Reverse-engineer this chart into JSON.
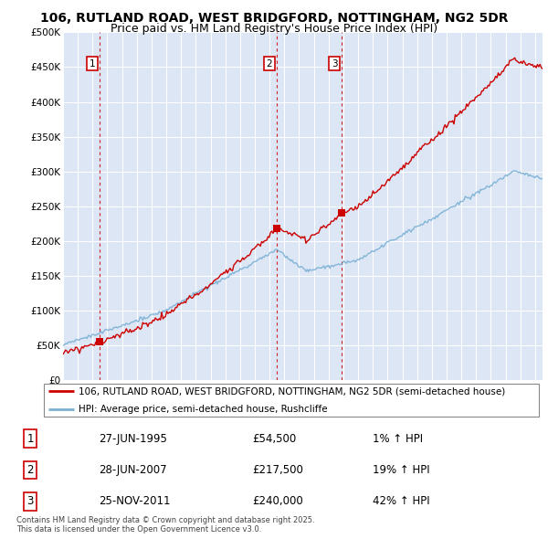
{
  "title_line1": "106, RUTLAND ROAD, WEST BRIDGFORD, NOTTINGHAM, NG2 5DR",
  "title_line2": "Price paid vs. HM Land Registry's House Price Index (HPI)",
  "ylim": [
    0,
    500000
  ],
  "yticks": [
    0,
    50000,
    100000,
    150000,
    200000,
    250000,
    300000,
    350000,
    400000,
    450000,
    500000
  ],
  "ytick_labels": [
    "£0",
    "£50K",
    "£100K",
    "£150K",
    "£200K",
    "£250K",
    "£300K",
    "£350K",
    "£400K",
    "£450K",
    "£500K"
  ],
  "xlim_start": 1993,
  "xlim_end": 2025.5,
  "xticks": [
    1993,
    1994,
    1995,
    1996,
    1997,
    1998,
    1999,
    2000,
    2001,
    2002,
    2003,
    2004,
    2005,
    2006,
    2007,
    2008,
    2009,
    2010,
    2011,
    2012,
    2013,
    2014,
    2015,
    2016,
    2017,
    2018,
    2019,
    2020,
    2021,
    2022,
    2023,
    2024,
    2025
  ],
  "plot_bg_color": "#dce6f5",
  "grid_color": "#ffffff",
  "sale_color": "#cc0000",
  "hpi_color": "#7ab0d4",
  "vline_color": "#cc0000",
  "purchases": [
    {
      "date_year": 1995.49,
      "price": 54500,
      "label": "1"
    },
    {
      "date_year": 2007.49,
      "price": 217500,
      "label": "2"
    },
    {
      "date_year": 2011.9,
      "price": 240000,
      "label": "3"
    }
  ],
  "legend_sale_label": "106, RUTLAND ROAD, WEST BRIDGFORD, NOTTINGHAM, NG2 5DR (semi-detached house)",
  "legend_hpi_label": "HPI: Average price, semi-detached house, Rushcliffe",
  "table_data": [
    [
      "1",
      "27-JUN-1995",
      "£54,500",
      "1% ↑ HPI"
    ],
    [
      "2",
      "28-JUN-2007",
      "£217,500",
      "19% ↑ HPI"
    ],
    [
      "3",
      "25-NOV-2011",
      "£240,000",
      "42% ↑ HPI"
    ]
  ],
  "footnote": "Contains HM Land Registry data © Crown copyright and database right 2025.\nThis data is licensed under the Open Government Licence v3.0."
}
